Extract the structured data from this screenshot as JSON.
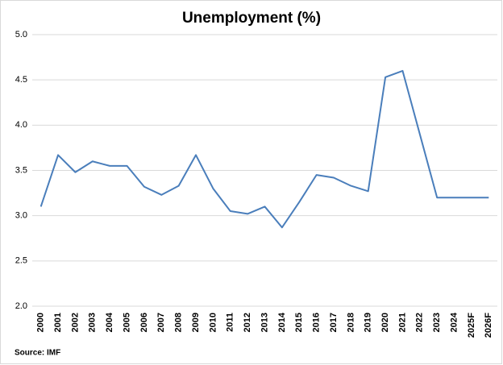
{
  "chart_data": {
    "type": "line",
    "title": "Unemployment (%)",
    "categories": [
      "2000",
      "2001",
      "2002",
      "2003",
      "2004",
      "2005",
      "2006",
      "2007",
      "2008",
      "2009",
      "2010",
      "2011",
      "2012",
      "2013",
      "2014",
      "2015",
      "2016",
      "2017",
      "2018",
      "2019",
      "2020",
      "2021",
      "2022",
      "2023",
      "2024",
      "2025F",
      "2026F"
    ],
    "series": [
      {
        "name": "Unemployment",
        "color": "#4a7ebb",
        "values": [
          3.1,
          3.67,
          3.48,
          3.6,
          3.55,
          3.55,
          3.32,
          3.23,
          3.33,
          3.67,
          3.3,
          3.05,
          3.02,
          3.1,
          2.87,
          3.15,
          3.45,
          3.42,
          3.33,
          3.27,
          4.53,
          4.6,
          3.9,
          3.2,
          3.2,
          3.2,
          3.2
        ]
      }
    ],
    "ylim": [
      2,
      5
    ],
    "yticks": [
      {
        "value": 2,
        "label": "2.0"
      },
      {
        "value": 2.5,
        "label": "2.5"
      },
      {
        "value": 3,
        "label": "3.0"
      },
      {
        "value": 3.5,
        "label": "3.5"
      },
      {
        "value": 4,
        "label": "4.0"
      },
      {
        "value": 4.5,
        "label": "4.5"
      },
      {
        "value": 5,
        "label": "5.0"
      }
    ],
    "grid": true,
    "annotation": "Source: IMF"
  }
}
